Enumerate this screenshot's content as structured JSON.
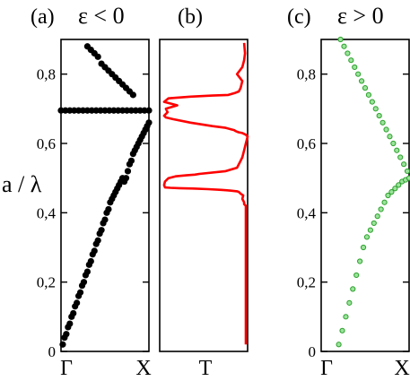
{
  "chart_data": [
    {
      "type": "scatter",
      "panel": "(a)",
      "condition": "ε < 0",
      "xlabel": "",
      "ylabel": "a / λ",
      "x_ticks": [
        "Γ",
        "X"
      ],
      "y_ticks": [
        "0",
        "0,2",
        "0,4",
        "0,6",
        "0,8"
      ],
      "xlim": [
        0,
        1
      ],
      "ylim": [
        0,
        0.9
      ],
      "marker_color": "#000000",
      "series": [
        {
          "x": [
            0.02,
            0.04,
            0.06,
            0.08,
            0.1,
            0.12,
            0.14,
            0.16,
            0.18,
            0.2,
            0.22,
            0.24,
            0.26,
            0.28,
            0.3,
            0.32,
            0.34,
            0.36,
            0.38,
            0.4,
            0.42,
            0.44,
            0.46,
            0.48,
            0.5,
            0.52,
            0.54,
            0.56,
            0.58,
            0.6,
            0.62,
            0.64,
            0.66,
            0.68,
            0.7,
            0.72,
            0.74,
            0.76,
            0.78,
            0.8,
            0.82,
            0.84,
            0.86,
            0.88,
            0.9,
            0.92,
            0.94,
            0.96,
            0.98,
            1.0
          ],
          "y": [
            0.02,
            0.04,
            0.05,
            0.07,
            0.08,
            0.1,
            0.11,
            0.13,
            0.14,
            0.16,
            0.17,
            0.19,
            0.2,
            0.22,
            0.23,
            0.25,
            0.26,
            0.28,
            0.29,
            0.31,
            0.32,
            0.34,
            0.35,
            0.37,
            0.38,
            0.4,
            0.41,
            0.43,
            0.44,
            0.45,
            0.46,
            0.47,
            0.48,
            0.49,
            0.5,
            0.49,
            0.5,
            0.52,
            0.54,
            0.55,
            0.57,
            0.58,
            0.59,
            0.6,
            0.61,
            0.62,
            0.63,
            0.64,
            0.65,
            0.66
          ]
        },
        {
          "x": [
            0.0,
            0.05,
            0.1,
            0.15,
            0.2,
            0.25,
            0.3,
            0.35,
            0.4,
            0.45,
            0.5,
            0.55,
            0.6,
            0.65,
            0.7,
            0.75,
            0.8,
            0.85,
            0.9,
            0.95,
            1.0
          ],
          "y": [
            0.695,
            0.695,
            0.695,
            0.695,
            0.695,
            0.695,
            0.695,
            0.695,
            0.695,
            0.695,
            0.695,
            0.695,
            0.695,
            0.695,
            0.695,
            0.695,
            0.695,
            0.695,
            0.695,
            0.695,
            0.695
          ]
        },
        {
          "x": [
            0.3,
            0.34,
            0.38,
            0.42,
            0.46,
            0.5,
            0.54,
            0.58,
            0.62,
            0.66,
            0.7,
            0.74,
            0.78,
            0.82
          ],
          "y": [
            0.88,
            0.87,
            0.86,
            0.85,
            0.83,
            0.82,
            0.81,
            0.8,
            0.79,
            0.78,
            0.77,
            0.76,
            0.75,
            0.74
          ]
        }
      ]
    },
    {
      "type": "line",
      "panel": "(b)",
      "xlabel": "T",
      "ylabel": "",
      "ylim": [
        0,
        0.9
      ],
      "line_color": "#ff0000",
      "series": [
        {
          "x": [
            0.98,
            0.98,
            0.98,
            0.98,
            0.98,
            0.98,
            0.98,
            0.98,
            0.98,
            0.98,
            0.98,
            0.98,
            0.98,
            0.96,
            0.96,
            0.94,
            0.95,
            0.92,
            0.9,
            0.88,
            0.8,
            0.7,
            0.55,
            0.38,
            0.22,
            0.12,
            0.06,
            0.05,
            0.06,
            0.1,
            0.18,
            0.3,
            0.4,
            0.45,
            0.75,
            0.88,
            0.92,
            0.94,
            0.96,
            0.98,
            1.0,
            0.98,
            0.94,
            0.9,
            0.88,
            0.86,
            0.85,
            0.82,
            0.75,
            0.6,
            0.35,
            0.15,
            0.07,
            0.05,
            0.09,
            0.07,
            0.2,
            0.05,
            0.1,
            0.35,
            0.6,
            0.78,
            0.85,
            0.9,
            0.92,
            0.94,
            0.88,
            0.94,
            0.96,
            0.97,
            0.96
          ],
          "y": [
            0.02,
            0.05,
            0.1,
            0.15,
            0.2,
            0.25,
            0.3,
            0.35,
            0.38,
            0.4,
            0.405,
            0.41,
            0.42,
            0.425,
            0.43,
            0.44,
            0.45,
            0.455,
            0.46,
            0.462,
            0.464,
            0.466,
            0.468,
            0.47,
            0.471,
            0.472,
            0.473,
            0.48,
            0.49,
            0.5,
            0.505,
            0.508,
            0.51,
            0.512,
            0.52,
            0.53,
            0.55,
            0.56,
            0.58,
            0.6,
            0.62,
            0.625,
            0.63,
            0.632,
            0.634,
            0.636,
            0.638,
            0.64,
            0.645,
            0.65,
            0.66,
            0.67,
            0.675,
            0.68,
            0.69,
            0.7,
            0.71,
            0.72,
            0.73,
            0.735,
            0.738,
            0.74,
            0.745,
            0.75,
            0.76,
            0.78,
            0.8,
            0.82,
            0.84,
            0.86,
            0.89
          ]
        }
      ]
    },
    {
      "type": "scatter",
      "panel": "(c)",
      "condition": "ε > 0",
      "xlabel": "",
      "ylabel": "",
      "x_ticks": [
        "Γ",
        "X"
      ],
      "y_ticks": [
        "0",
        "0,2",
        "0,4",
        "0,6",
        "0,8"
      ],
      "xlim": [
        0,
        1
      ],
      "ylim": [
        0,
        0.9
      ],
      "marker_color": "#2ca02c",
      "series": [
        {
          "x": [
            0.2,
            0.24,
            0.28,
            0.32,
            0.36,
            0.4,
            0.44,
            0.48,
            0.52,
            0.56,
            0.6,
            0.64,
            0.68,
            0.72,
            0.76,
            0.8,
            0.84,
            0.88,
            0.92,
            0.96,
            1.0,
            0.98,
            0.94,
            0.9,
            0.86,
            0.82,
            0.78,
            0.74,
            0.7,
            0.66,
            0.62,
            0.58,
            0.54,
            0.5,
            0.46,
            0.42,
            0.38,
            0.34,
            0.3,
            0.26,
            0.22
          ],
          "y": [
            0.02,
            0.06,
            0.1,
            0.14,
            0.18,
            0.22,
            0.26,
            0.3,
            0.33,
            0.35,
            0.37,
            0.39,
            0.41,
            0.43,
            0.45,
            0.46,
            0.47,
            0.48,
            0.49,
            0.495,
            0.5,
            0.52,
            0.54,
            0.56,
            0.58,
            0.6,
            0.62,
            0.64,
            0.66,
            0.68,
            0.7,
            0.72,
            0.74,
            0.76,
            0.78,
            0.8,
            0.82,
            0.84,
            0.86,
            0.88,
            0.9
          ]
        }
      ]
    }
  ]
}
